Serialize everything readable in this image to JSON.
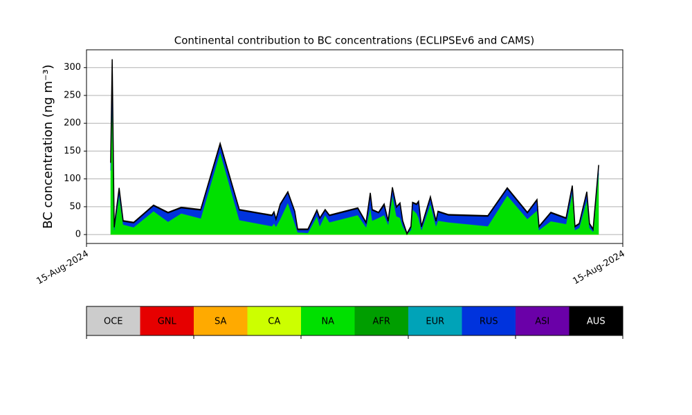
{
  "chart_data": {
    "type": "stacked_area",
    "title": "Continental contribution to BC concentrations (ECLIPSEv6 and CAMS)",
    "y_label": "BC concentration (ng m⁻³)",
    "x": [
      1.08,
      1.15,
      1.24,
      1.46,
      1.64,
      2.11,
      3.0,
      3.65,
      4.24,
      5.11,
      5.98,
      6.84,
      8.3,
      8.39,
      8.48,
      8.67,
      9.01,
      9.32,
      9.45,
      9.91,
      10.31,
      10.44,
      10.68,
      10.87,
      12.14,
      12.51,
      12.7,
      12.79,
      13.07,
      13.32,
      13.5,
      13.69,
      13.87,
      14.03,
      14.15,
      14.34,
      14.52,
      14.59,
      14.77,
      14.86,
      14.99,
      15.39,
      15.64,
      15.73,
      16.2,
      17.96,
      18.83,
      19.73,
      20.16,
      20.25,
      20.78,
      21.46,
      21.74,
      21.86,
      22.05,
      22.39,
      22.51,
      22.67,
      22.92
    ],
    "xlim": [
      0,
      24
    ],
    "xticks": [
      {
        "value": 0,
        "label": "15-Aug-2024"
      },
      {
        "value": 24,
        "label": "15-Aug-2024"
      }
    ],
    "ylim": [
      -16,
      332
    ],
    "yticks": [
      0,
      50,
      100,
      150,
      200,
      250,
      300
    ],
    "grid": true,
    "series": [
      {
        "name": "OCE",
        "color": "#cccccc",
        "values": [
          0,
          0,
          0,
          0,
          0,
          0,
          0,
          0,
          0,
          0,
          0,
          0,
          0,
          0,
          0,
          0,
          0,
          0,
          0,
          0,
          0,
          0,
          0,
          0,
          0,
          0,
          0,
          0,
          0,
          0,
          0,
          0,
          0,
          0,
          0,
          0,
          0,
          0,
          0,
          0,
          0,
          0,
          0,
          0,
          0,
          0,
          0,
          0,
          0,
          0,
          0,
          0,
          0,
          0,
          0,
          0,
          0,
          0,
          0
        ]
      },
      {
        "name": "GNL",
        "color": "#e60000",
        "values": [
          0,
          0,
          0,
          0,
          0,
          0,
          0,
          0,
          0,
          0,
          0,
          0,
          0,
          0,
          0,
          0,
          0,
          0,
          0,
          0,
          0,
          0,
          0,
          0,
          0,
          0,
          0,
          0,
          0,
          0,
          0,
          0,
          0,
          0,
          0,
          0,
          0,
          0,
          0,
          0,
          0,
          0,
          0,
          0,
          0,
          0,
          0,
          0,
          0,
          0,
          0,
          0,
          0,
          0,
          0,
          0,
          0,
          0,
          0
        ]
      },
      {
        "name": "SA",
        "color": "#ffaa00",
        "values": [
          0,
          0,
          0,
          0,
          0,
          0,
          0,
          0,
          0,
          0,
          0,
          0,
          0,
          0,
          0,
          0,
          0,
          0,
          0,
          0,
          0,
          0,
          0,
          0,
          0,
          0,
          0,
          0,
          0,
          0,
          0,
          0,
          0,
          0,
          0,
          0,
          0,
          0,
          0,
          0,
          0,
          0,
          0,
          0,
          0,
          0,
          0,
          0,
          0,
          0,
          0,
          0,
          0,
          0,
          0,
          0,
          0,
          0,
          0
        ]
      },
      {
        "name": "CA",
        "color": "#ccff00",
        "values": [
          0,
          0,
          0,
          0,
          0,
          0,
          0,
          0,
          0,
          0,
          0,
          0,
          0,
          0,
          0,
          0,
          0,
          0,
          0,
          0,
          0,
          0,
          0,
          0,
          0,
          0,
          0,
          0,
          0,
          0,
          0,
          0,
          0,
          0,
          0,
          0,
          0,
          0,
          0,
          0,
          0,
          0,
          0,
          0,
          0,
          0,
          0,
          0,
          0,
          0,
          0,
          0,
          0,
          0,
          0,
          0,
          0,
          0,
          0
        ]
      },
      {
        "name": "NA",
        "color": "#00e000",
        "values": [
          115,
          240,
          8,
          70,
          18,
          13,
          42,
          23,
          38,
          29,
          148,
          26,
          15,
          20,
          14,
          28,
          57,
          20,
          4,
          3,
          33,
          15,
          35,
          22,
          35,
          13,
          48,
          25,
          30,
          35,
          18,
          70,
          33,
          30,
          15,
          1,
          8,
          45,
          38,
          30,
          8,
          55,
          15,
          25,
          22,
          15,
          70,
          28,
          43,
          8,
          24,
          19,
          75,
          8,
          12,
          62,
          12,
          5,
          110
        ]
      },
      {
        "name": "AFR",
        "color": "#009e00",
        "values": [
          0,
          0,
          0,
          0,
          0,
          0,
          0,
          0,
          0,
          0,
          0,
          0,
          0,
          0,
          0,
          0,
          0,
          0,
          0,
          0,
          0,
          0,
          0,
          0,
          0,
          0,
          0,
          0,
          0,
          0,
          0,
          0,
          0,
          0,
          0,
          0,
          0,
          0,
          0,
          0,
          0,
          0,
          0,
          0,
          0,
          0,
          0,
          0,
          0,
          0,
          0,
          0,
          0,
          0,
          0,
          0,
          0,
          0,
          0
        ]
      },
      {
        "name": "EUR",
        "color": "#00a3b8",
        "values": [
          0,
          0,
          0,
          0,
          0,
          0,
          0,
          0,
          0,
          0,
          0,
          0,
          0,
          0,
          0,
          0,
          0,
          0,
          0,
          0,
          0,
          0,
          0,
          0,
          0,
          0,
          0,
          0,
          0,
          0,
          0,
          0,
          0,
          0,
          0,
          0,
          0,
          0,
          0,
          0,
          0,
          0,
          0,
          0,
          0,
          0,
          0,
          0,
          0,
          0,
          0,
          0,
          0,
          0,
          0,
          0,
          0,
          0,
          0
        ]
      },
      {
        "name": "RUS",
        "color": "#0033dd",
        "values": [
          14,
          70,
          5,
          13,
          6,
          8,
          10,
          16,
          10,
          15,
          14,
          18,
          19,
          20,
          13,
          26,
          19,
          21,
          5,
          6,
          10,
          14,
          9,
          12,
          12,
          8,
          25,
          19,
          9,
          18,
          6,
          14,
          16,
          26,
          9,
          0,
          6,
          12,
          16,
          29,
          6,
          12,
          9,
          16,
          13,
          18,
          13,
          11,
          19,
          6,
          15,
          10,
          12,
          6,
          7,
          14,
          7,
          4,
          14
        ]
      },
      {
        "name": "ASI",
        "color": "#6a00a8",
        "values": [
          0,
          0,
          0,
          0,
          0,
          0,
          0,
          0,
          0,
          0,
          0,
          0,
          0,
          0,
          0,
          0,
          0,
          0,
          0,
          0,
          0,
          0,
          0,
          0,
          0,
          0,
          0,
          0,
          0,
          0,
          0,
          0,
          0,
          0,
          0,
          0,
          0,
          0,
          0,
          0,
          0,
          0,
          0,
          0,
          0,
          0,
          0,
          0,
          0,
          0,
          0,
          0,
          0,
          0,
          0,
          0,
          0,
          0,
          0
        ]
      },
      {
        "name": "AUS",
        "color": "#000000",
        "values": [
          1,
          5,
          1,
          1,
          1,
          1,
          1,
          1,
          1,
          1,
          2,
          1,
          1,
          1,
          1,
          1,
          1,
          1,
          1,
          1,
          1,
          1,
          1,
          1,
          1,
          1,
          2,
          1,
          1,
          2,
          1,
          1,
          1,
          1,
          1,
          1,
          1,
          1,
          1,
          1,
          1,
          1,
          1,
          1,
          1,
          1,
          1,
          1,
          1,
          1,
          1,
          1,
          1,
          1,
          1,
          1,
          1,
          1,
          1
        ]
      }
    ]
  }
}
